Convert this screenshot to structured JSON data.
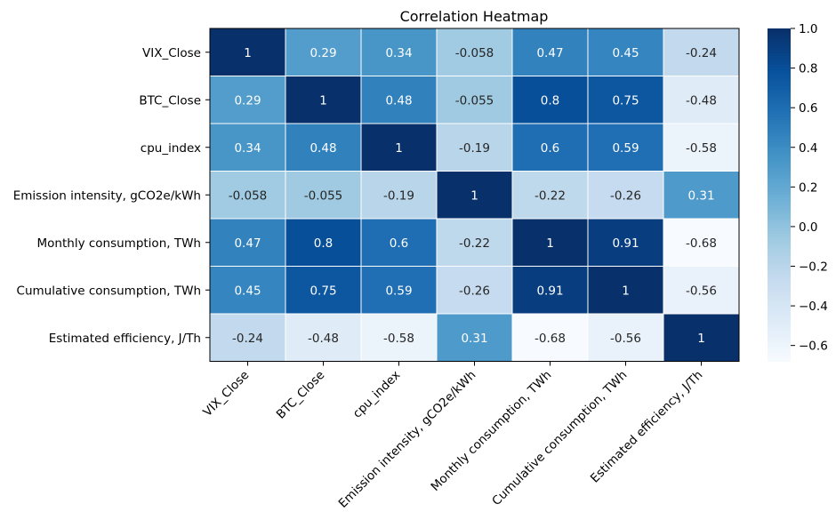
{
  "chart_data": {
    "type": "heatmap",
    "title": "Correlation Heatmap",
    "xlabel": "",
    "ylabel": "",
    "rows": [
      "VIX_Close",
      "BTC_Close",
      "cpu_index",
      "Emission intensity, gCO2e/kWh",
      "Monthly consumption, TWh",
      "Cumulative consumption, TWh",
      "Estimated efficiency, J/Th"
    ],
    "columns": [
      "VIX_Close",
      "BTC_Close",
      "cpu_index",
      "Emission intensity, gCO2e/kWh",
      "Monthly consumption, TWh",
      "Cumulative consumption, TWh",
      "Estimated efficiency, J/Th"
    ],
    "values": [
      [
        1,
        0.29,
        0.34,
        -0.058,
        0.47,
        0.45,
        -0.24
      ],
      [
        0.29,
        1,
        0.48,
        -0.055,
        0.8,
        0.75,
        -0.48
      ],
      [
        0.34,
        0.48,
        1,
        -0.19,
        0.6,
        0.59,
        -0.58
      ],
      [
        -0.058,
        -0.055,
        -0.19,
        1,
        -0.22,
        -0.26,
        0.31
      ],
      [
        0.47,
        0.8,
        0.6,
        -0.22,
        1,
        0.91,
        -0.68
      ],
      [
        0.45,
        0.75,
        0.59,
        -0.26,
        0.91,
        1,
        -0.56
      ],
      [
        -0.24,
        -0.48,
        -0.58,
        0.31,
        -0.68,
        -0.56,
        1
      ]
    ],
    "colormap": "Blues",
    "vmin": -0.68,
    "vmax": 1.0,
    "colorbar_ticks": [
      1.0,
      0.8,
      0.6,
      0.4,
      0.2,
      0.0,
      -0.2,
      -0.4,
      -0.6
    ],
    "colorbar_tick_labels": [
      "1.0",
      "0.8",
      "0.6",
      "0.4",
      "0.2",
      "0.0",
      "−0.2",
      "−0.4",
      "−0.6"
    ],
    "annotations": true,
    "grid_lines": "white"
  }
}
